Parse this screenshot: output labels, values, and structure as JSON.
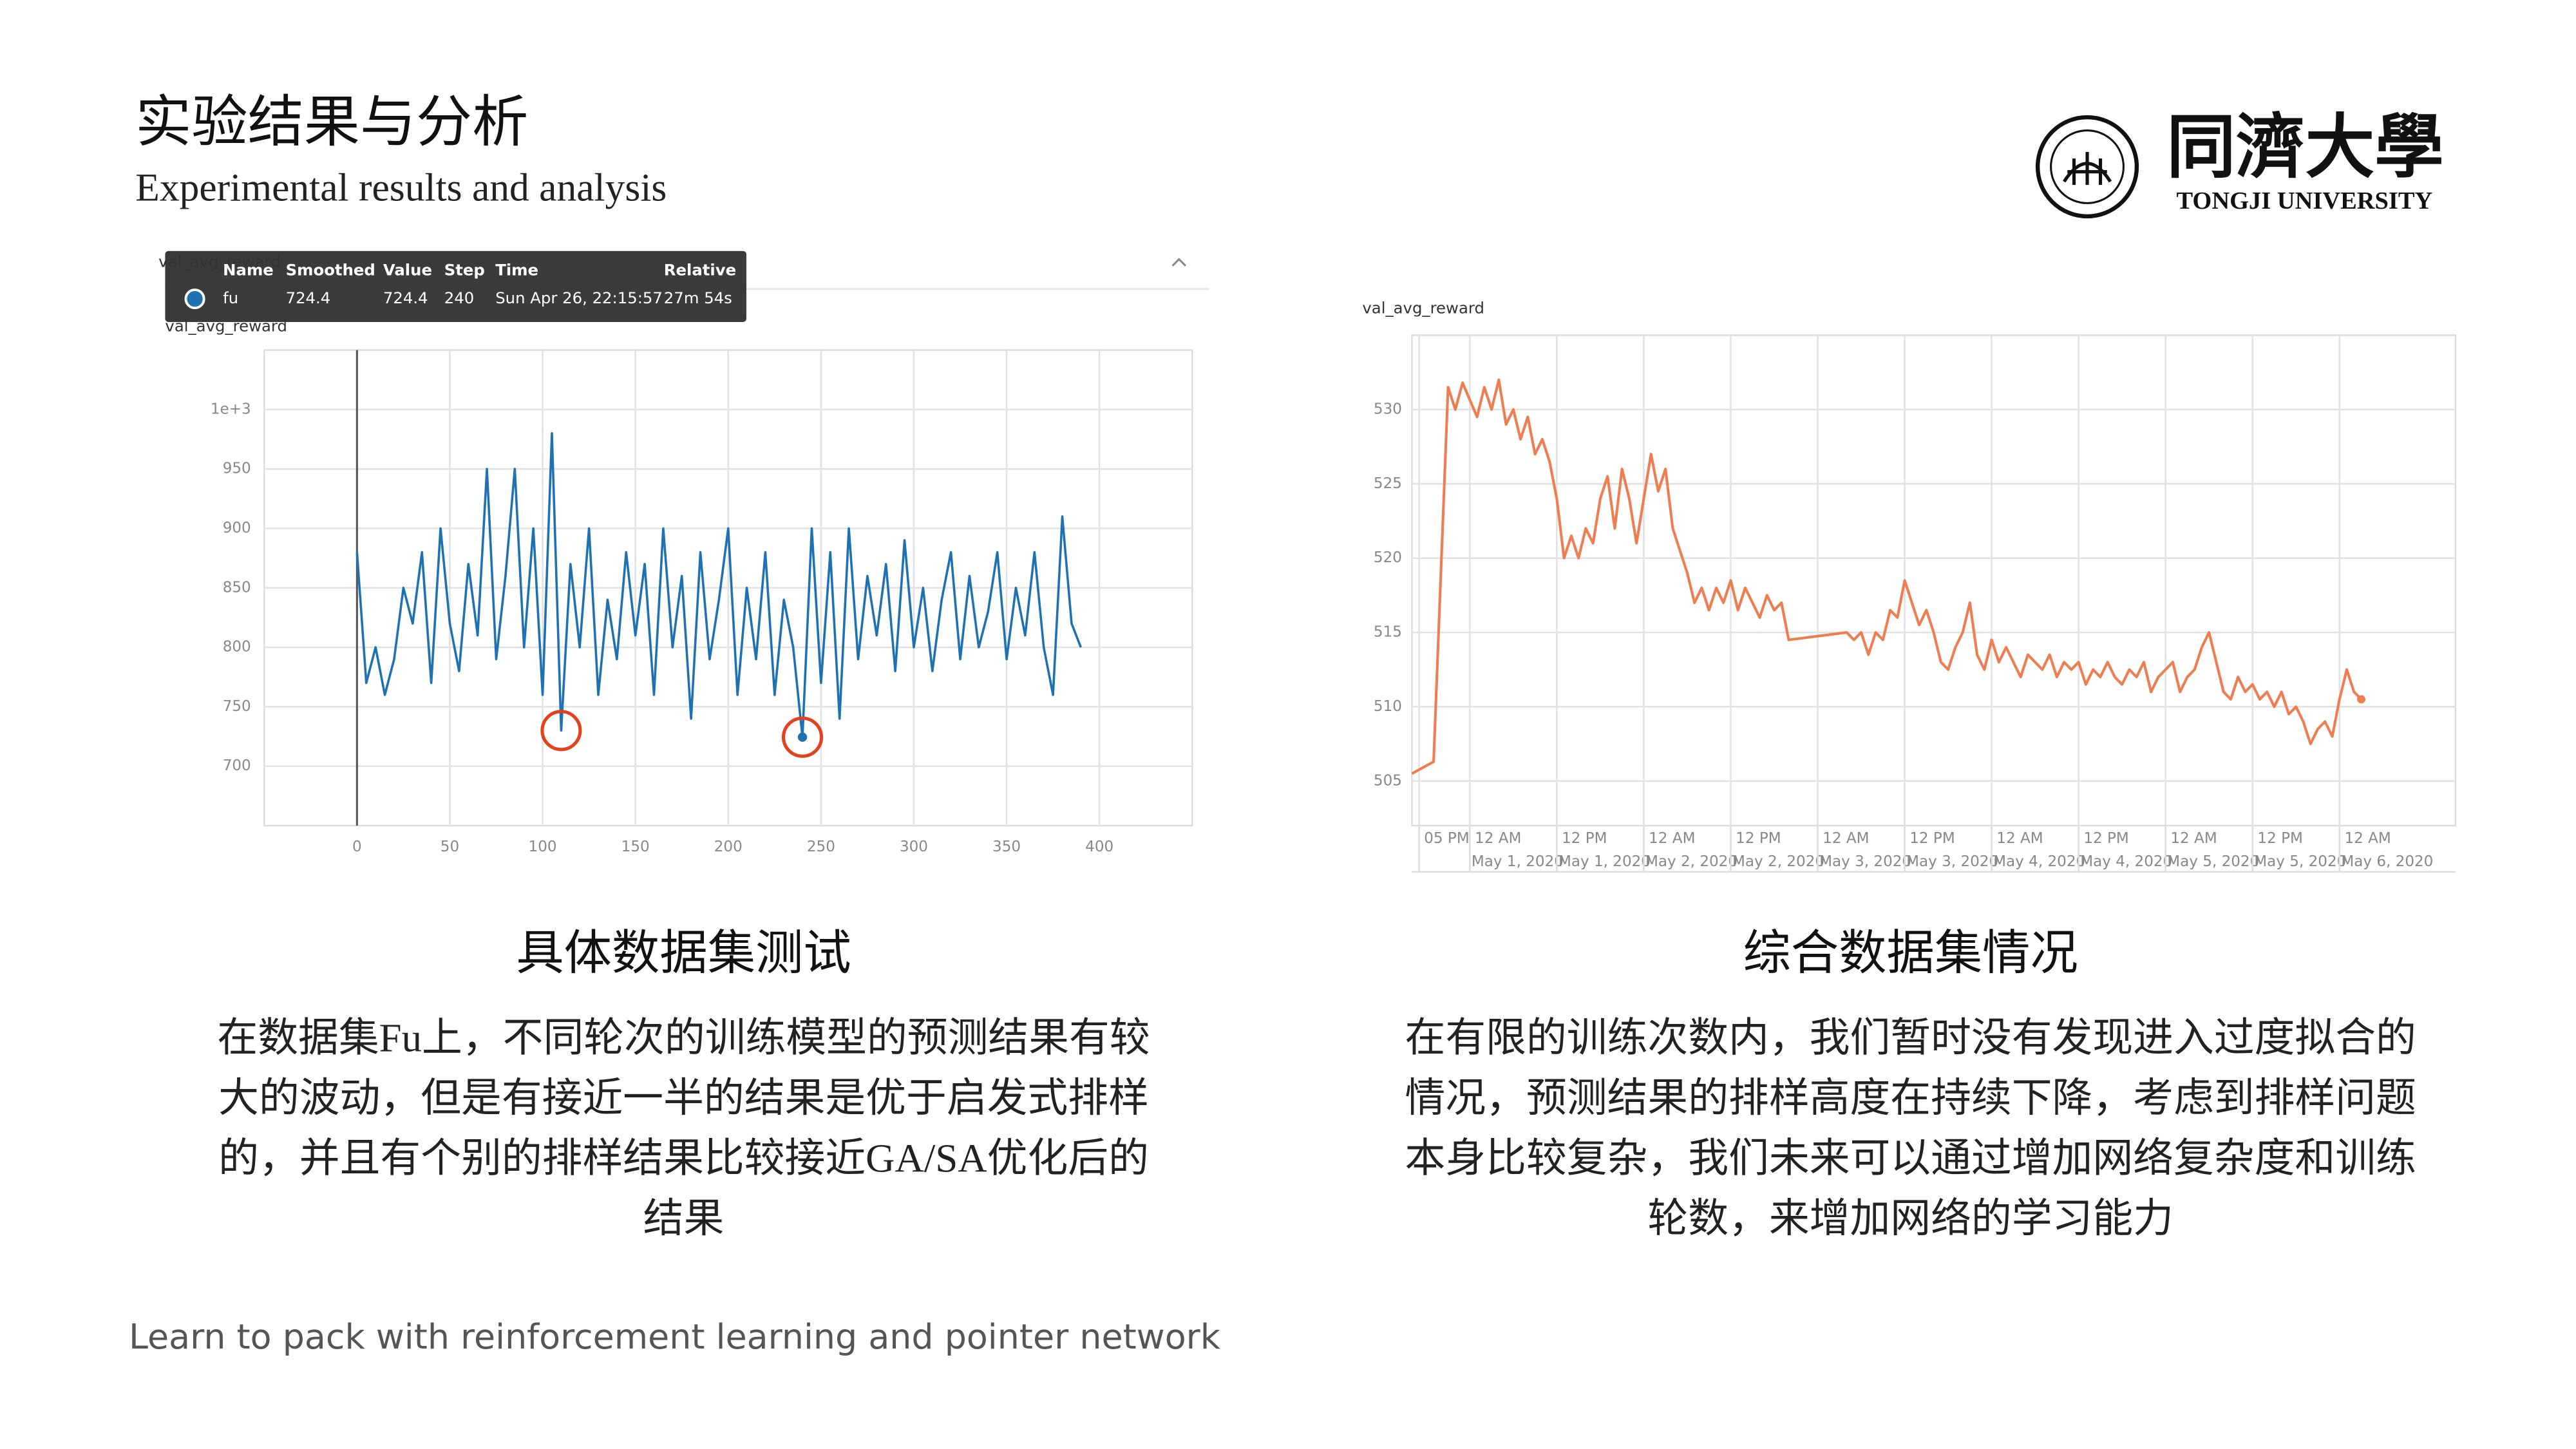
{
  "header": {
    "title": "实验结果与分析",
    "subtitle": "Experimental results and analysis",
    "logo_text": "同濟大學",
    "logo_subtitle": "TONGJI UNIVERSITY"
  },
  "chart_data": [
    {
      "type": "line",
      "title": "val_avg_reward",
      "x": [
        0,
        5,
        10,
        15,
        20,
        25,
        30,
        35,
        40,
        45,
        50,
        55,
        60,
        65,
        70,
        75,
        80,
        85,
        90,
        95,
        100,
        105,
        110,
        115,
        120,
        125,
        130,
        135,
        140,
        145,
        150,
        155,
        160,
        165,
        170,
        175,
        180,
        185,
        190,
        195,
        200,
        205,
        210,
        215,
        220,
        225,
        230,
        235,
        240,
        245,
        250,
        255,
        260,
        265,
        270,
        275,
        280,
        285,
        290,
        295,
        300,
        305,
        310,
        315,
        320,
        325,
        330,
        335,
        340,
        345,
        350,
        355,
        360,
        365,
        370,
        375,
        380,
        385,
        390
      ],
      "series": [
        {
          "name": "fu",
          "color": "#1f72b2",
          "values": [
            880,
            770,
            800,
            760,
            790,
            850,
            820,
            880,
            770,
            900,
            820,
            780,
            870,
            810,
            950,
            790,
            860,
            950,
            800,
            900,
            760,
            980,
            730,
            870,
            800,
            900,
            760,
            840,
            790,
            880,
            810,
            870,
            760,
            900,
            800,
            860,
            740,
            880,
            790,
            840,
            900,
            760,
            850,
            790,
            880,
            760,
            840,
            800,
            724.4,
            900,
            770,
            880,
            740,
            900,
            790,
            860,
            810,
            870,
            780,
            890,
            800,
            850,
            780,
            840,
            880,
            790,
            860,
            800,
            830,
            880,
            790,
            850,
            810,
            880,
            800,
            760,
            910,
            820,
            800
          ]
        }
      ],
      "xlim": [
        -50,
        450
      ],
      "xticks": [
        0,
        50,
        100,
        150,
        200,
        250,
        300,
        350,
        400
      ],
      "ylim": [
        650,
        1050
      ],
      "yticks": [
        700,
        750,
        800,
        850,
        900,
        950,
        {
          "value": 1000,
          "label": "1e+3"
        }
      ],
      "grid": true,
      "y_axis_line": true,
      "highlighted_x": [
        110,
        240
      ],
      "tooltip": {
        "columns": [
          "Name",
          "Smoothed",
          "Value",
          "Step",
          "Time",
          "Relative"
        ],
        "row": [
          "fu",
          724.4,
          724.4,
          240,
          "Sun Apr 26, 22:15:57",
          "27m 54s"
        ]
      }
    },
    {
      "type": "line",
      "title": "val_avg_reward",
      "x": [
        -8,
        -5,
        -3,
        -2,
        -1,
        1,
        2,
        3,
        4,
        5,
        6,
        7,
        8,
        9,
        10,
        11,
        12,
        13,
        14,
        15,
        16,
        17,
        18,
        19,
        20,
        21,
        22,
        23,
        24,
        25,
        26,
        27,
        28,
        29,
        30,
        31,
        32,
        33,
        34,
        35,
        36,
        37,
        38,
        39,
        40,
        41,
        42,
        43,
        44,
        52,
        53,
        54,
        55,
        56,
        57,
        58,
        59,
        60,
        61,
        62,
        63,
        64,
        65,
        66,
        67,
        68,
        69,
        70,
        71,
        72,
        73,
        74,
        75,
        76,
        77,
        78,
        79,
        80,
        81,
        82,
        83,
        84,
        85,
        86,
        87,
        88,
        89,
        90,
        91,
        92,
        93,
        94,
        95,
        96,
        97,
        98,
        99,
        100,
        101,
        102,
        103,
        104,
        105,
        106,
        107,
        108,
        109,
        110,
        111,
        112,
        113,
        114,
        115,
        116,
        117,
        118,
        119,
        120,
        121,
        122,
        123
      ],
      "series": [
        {
          "name": "val_avg_reward",
          "color": "#ee7d52",
          "values": [
            505.5,
            506.3,
            531.5,
            530,
            531.8,
            529.5,
            531.5,
            530,
            532,
            529,
            530,
            528,
            529.5,
            527,
            528,
            526.5,
            524,
            520,
            521.5,
            520,
            522,
            521,
            524,
            525.5,
            522,
            526,
            524,
            521,
            524,
            527,
            524.5,
            526,
            522,
            520.5,
            519,
            517,
            518,
            516.5,
            518,
            517,
            518.5,
            516.5,
            518,
            517,
            516,
            517.5,
            516.5,
            517,
            514.5,
            515,
            514.5,
            515,
            513.5,
            515,
            514.5,
            516.5,
            516,
            518.5,
            517,
            515.5,
            516.5,
            515,
            513,
            512.5,
            514,
            515,
            517,
            513.5,
            512.5,
            514.5,
            513,
            514,
            513,
            512,
            513.5,
            513,
            512.5,
            513.5,
            512,
            513,
            512.5,
            513,
            511.5,
            512.5,
            512,
            513,
            512,
            511.5,
            512.5,
            512,
            513,
            511,
            512,
            512.5,
            513,
            511,
            512,
            512.5,
            514,
            515,
            513,
            511,
            510.5,
            512,
            511,
            511.5,
            510.5,
            511,
            510,
            511,
            509.5,
            510,
            509,
            507.5,
            508.5,
            509,
            508,
            510.5,
            512.5,
            511,
            510.5
          ]
        }
      ],
      "xlim": [
        -8,
        136
      ],
      "xticks": [
        {
          "value": -7,
          "label": "05 PM"
        },
        {
          "value": 0,
          "label": "12 AM"
        },
        {
          "value": 12,
          "label": "12 PM"
        },
        {
          "value": 24,
          "label": "12 AM"
        },
        {
          "value": 36,
          "label": "12 PM"
        },
        {
          "value": 48,
          "label": "12 AM"
        },
        {
          "value": 60,
          "label": "12 PM"
        },
        {
          "value": 72,
          "label": "12 AM"
        },
        {
          "value": 84,
          "label": "12 PM"
        },
        {
          "value": 96,
          "label": "12 AM"
        },
        {
          "value": 108,
          "label": "12 PM"
        },
        {
          "value": 120,
          "label": "12 AM"
        }
      ],
      "xtick_dates": [
        null,
        "May 1, 2020",
        "May 1, 2020",
        "May 2, 2020",
        "May 2, 2020",
        "May 3, 2020",
        "May 3, 2020",
        "May 4, 2020",
        "May 4, 2020",
        "May 5, 2020",
        "May 5, 2020",
        "May 6, 2020"
      ],
      "ylim": [
        502,
        535
      ],
      "yticks": [
        505,
        510,
        515,
        520,
        525,
        530
      ],
      "grid": true
    }
  ],
  "sections": [
    {
      "heading": "具体数据集测试",
      "lines": [
        "在数据集Fu上，不同轮次的训练模型的预测结果有较",
        "大的波动，但是有接近一半的结果是优于启发式排样",
        "的，并且有个别的排样结果比较接近GA/SA优化后的",
        "结果"
      ]
    },
    {
      "heading": "综合数据集情况",
      "lines": [
        "在有限的训练次数内，我们暂时没有发现进入过度拟合的",
        "情况，预测结果的排样高度在持续下降，考虑到排样问题",
        "本身比较复杂，我们未来可以通过增加网络复杂度和训练",
        "轮数，来增加网络的学习能力"
      ]
    }
  ],
  "footer": "Learn to pack with reinforcement learning and pointer network"
}
